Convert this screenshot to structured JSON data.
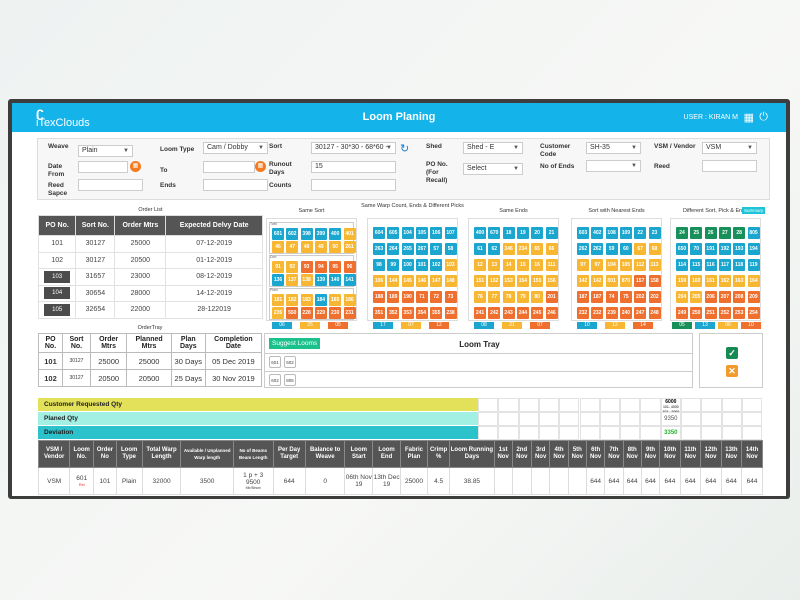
{
  "header": {
    "logo": "iTexClouds",
    "title": "Loom Planing",
    "user": "USER : KIRAN M"
  },
  "filters": {
    "weave": {
      "label": "Weave",
      "value": "Plain"
    },
    "loom_type": {
      "label": "Loom Type",
      "value": "Cam / Dobby"
    },
    "sort": {
      "label": "Sort",
      "value": "30127 - 30*30 - 68*60 -"
    },
    "shed": {
      "label": "Shed",
      "value": "Shed - E"
    },
    "customer_code": {
      "label": "Customer Code",
      "value": "SH-35"
    },
    "vsm": {
      "label": "VSM / Vendor",
      "value": "VSM"
    },
    "date_from": {
      "label": "Date From",
      "value": ""
    },
    "to": {
      "label": "To",
      "value": ""
    },
    "runout": {
      "label": "Runout Days",
      "value": "15"
    },
    "po": {
      "label": "PO No. (For Recall)",
      "value": "Select"
    },
    "no_of_ends": {
      "label": "No of Ends",
      "value": ""
    },
    "reed": {
      "label": "Reed",
      "value": ""
    },
    "reed_space": {
      "label": "Reed Sapce",
      "value": ""
    },
    "ends": {
      "label": "Ends",
      "value": ""
    },
    "counts": {
      "label": "Counts",
      "value": ""
    }
  },
  "order_list": {
    "title": "Order List",
    "headers": [
      "PO No.",
      "Sort No.",
      "Order Mtrs",
      "Expected Delvy Date"
    ],
    "rows": [
      [
        "101",
        "30127",
        "25000",
        "07-12-2019",
        false
      ],
      [
        "102",
        "30127",
        "20500",
        "01-12-2019",
        false
      ],
      [
        "103",
        "31657",
        "23000",
        "08-12-2019",
        true
      ],
      [
        "104",
        "30654",
        "28000",
        "14-12-2019",
        true
      ],
      [
        "105",
        "32654",
        "22000",
        "28-122019",
        true
      ]
    ]
  },
  "colors": {
    "b": "#1aa6cf",
    "y": "#f8b732",
    "o": "#ef6f2e",
    "g": "#17905a"
  },
  "loom_groups": [
    {
      "title": "Same Sort",
      "subs": [
        "Twill",
        "Dob",
        "Plain"
      ],
      "cells": [
        [
          "601b",
          "602b",
          "398b",
          "399b",
          "400b",
          "401y"
        ],
        [
          "46y",
          "47y",
          "48y",
          "49y",
          "50y",
          "261y"
        ],
        [
          "91y",
          "92y",
          "93o",
          "94o",
          "95o",
          "96o"
        ],
        [
          "136b",
          "137y",
          "138y",
          "139b",
          "140b",
          "141b"
        ],
        [
          "181y",
          "182y",
          "183y",
          "184b",
          "185y",
          "186y"
        ],
        [
          "226y",
          "550o",
          "228o",
          "229o",
          "230o",
          "231o"
        ]
      ],
      "footer": [
        [
          "06",
          "b"
        ],
        [
          "25",
          "y"
        ],
        [
          "05",
          "o"
        ]
      ]
    },
    {
      "title": "Same Warp Count, Ends & Different Picks",
      "cells": [
        [
          "604b",
          "605b",
          "104b",
          "105b",
          "106b",
          "107b"
        ],
        [
          "263b",
          "264b",
          "265b",
          "267b",
          "57b",
          "58b"
        ],
        [
          "98b",
          "99b",
          "100b",
          "101b",
          "102b",
          "103y"
        ],
        [
          "106y",
          "144y",
          "145y",
          "146y",
          "147y",
          "148y"
        ],
        [
          "188o",
          "189o",
          "190o",
          "71o",
          "72o",
          "73o"
        ],
        [
          "351o",
          "352o",
          "353o",
          "354o",
          "355o",
          "238o"
        ]
      ],
      "footer": [
        [
          "17",
          "b"
        ],
        [
          "07",
          "y"
        ],
        [
          "12",
          "o"
        ]
      ]
    },
    {
      "title": "Same Ends",
      "cells": [
        [
          "400b",
          "670b",
          "18b",
          "19b",
          "20b",
          "21b"
        ],
        [
          "61b",
          "62b",
          "346y",
          "234y",
          "65y",
          "66y"
        ],
        [
          "12y",
          "13y",
          "14y",
          "15y",
          "16y",
          "111y"
        ],
        [
          "151y",
          "152y",
          "153y",
          "154y",
          "155y",
          "156y"
        ],
        [
          "76y",
          "77y",
          "78y",
          "79y",
          "80y",
          "201o"
        ],
        [
          "241o",
          "242o",
          "243o",
          "244o",
          "245o",
          "246o"
        ]
      ],
      "footer": [
        [
          "08",
          "b"
        ],
        [
          "21",
          "y"
        ],
        [
          "07",
          "o"
        ]
      ]
    },
    {
      "title": "Sort with Nearest Ends",
      "cells": [
        [
          "603b",
          "402b",
          "108b",
          "109b",
          "22b",
          "23b"
        ],
        [
          "262b",
          "262b",
          "59b",
          "60b",
          "67y",
          "68y"
        ],
        [
          "97y",
          "97y",
          "104y",
          "105y",
          "112y",
          "113y"
        ],
        [
          "142y",
          "142y",
          "801y",
          "870y",
          "157o",
          "158o"
        ],
        [
          "187o",
          "187o",
          "74o",
          "75o",
          "202o",
          "202o"
        ],
        [
          "232o",
          "232o",
          "239o",
          "240o",
          "247o",
          "248o"
        ]
      ],
      "footer": [
        [
          "10",
          "b"
        ],
        [
          "12",
          "y"
        ],
        [
          "14",
          "o"
        ]
      ]
    },
    {
      "title": "Different Sort, Pick & Ends",
      "badge": "Summary",
      "cells": [
        [
          "24g",
          "25g",
          "26g",
          "27g",
          "28g",
          "805b"
        ],
        [
          "650b",
          "70b",
          "191b",
          "192b",
          "193b",
          "194b"
        ],
        [
          "114b",
          "115b",
          "116b",
          "117b",
          "118b",
          "119b"
        ],
        [
          "159y",
          "160y",
          "161y",
          "162y",
          "163y",
          "164y"
        ],
        [
          "204y",
          "205y",
          "206o",
          "207o",
          "208o",
          "209o"
        ],
        [
          "249o",
          "250o",
          "251o",
          "252o",
          "253o",
          "254o"
        ]
      ],
      "footer": [
        [
          "05",
          "g"
        ],
        [
          "13",
          "b"
        ],
        [
          "06",
          "y"
        ],
        [
          "10",
          "o"
        ]
      ]
    }
  ],
  "order_tray": {
    "title": "OrderTray",
    "headers": [
      "PO No.",
      "Sort No.",
      "Order Mtrs",
      "Planned Mtrs",
      "Plan Days",
      "Completion Date"
    ],
    "rows": [
      [
        "101",
        "30127",
        "25000",
        "25000",
        "30 Days",
        "05 Dec 2019"
      ],
      [
        "102",
        "30127",
        "20500",
        "20500",
        "25 Days",
        "30 Nov 2019"
      ]
    ]
  },
  "loom_tray": {
    "title": "Loom Tray",
    "suggest": "Suggest Looms",
    "rows": [
      [
        "601",
        "602"
      ],
      [
        "602",
        "805"
      ]
    ]
  },
  "bands": {
    "customer_qty": "Customer  Requested Qty",
    "planned_qty": "Planed Qty",
    "deviation": "Deviation",
    "col10": {
      "customer": "6000",
      "customer_detail1": "101- 4000",
      "customer_detail2": "102 - 2000",
      "planned": "9350",
      "deviation": "3350"
    }
  },
  "plan_table": {
    "headers": [
      "VSM / Vendor",
      "Loom No.",
      "Order No",
      "Loom Type",
      "Total Warp Length",
      "Available / Unplanned Warp length",
      "No of Beams Beam Length",
      "Per Day Target",
      "Balance to Weave",
      "Loom Start",
      "Loom End",
      "Fabric Plan",
      "Crimp %",
      "Loom Running Days",
      "1st Nov",
      "2nd Nov",
      "3rd Nov",
      "4th Nov",
      "5th Nov",
      "6th Nov",
      "7th Nov",
      "8th Nov",
      "9th Nov",
      "10th Nov",
      "11th Nov",
      "12th Nov",
      "13th Nov",
      "14th Nov"
    ],
    "row": {
      "vsm": "VSM",
      "loom": "601",
      "loom_tag": "Rel",
      "order": "101",
      "type": "Plain",
      "total": "32000",
      "avail": "3500",
      "beams": "1 p + 3",
      "beam_len": "9500",
      "beam_unit": "Mtr/Beam",
      "target": "644",
      "balance": "0",
      "start": "06th Nov 19",
      "end": "13th Dec 19",
      "fabric": "25000",
      "crimp": "4.5",
      "days": "38.85",
      "daily": [
        "",
        "",
        "",
        "",
        "",
        "644",
        "644",
        "644",
        "644",
        "644",
        "644",
        "644",
        "644",
        "644"
      ]
    }
  }
}
